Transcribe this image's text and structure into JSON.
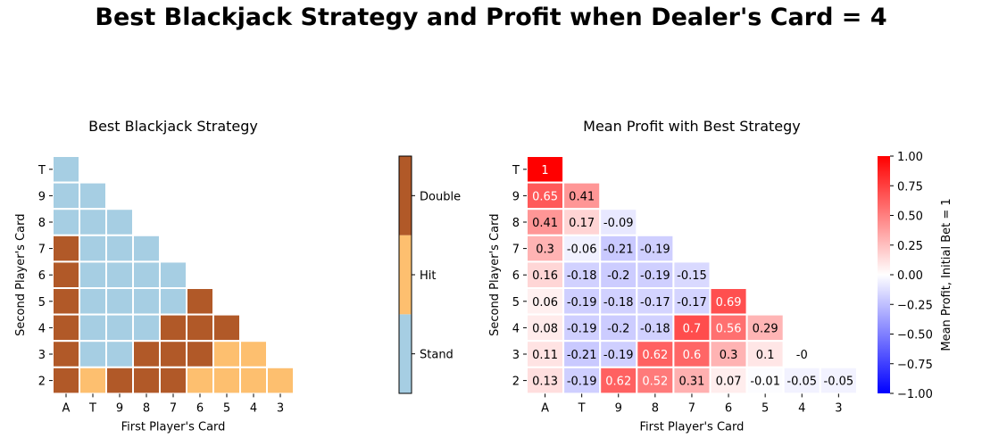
{
  "title": "Best Blackjack Strategy and Profit when Dealer's Card = 4",
  "chart_data": [
    {
      "type": "heatmap",
      "title": "Best Blackjack Strategy",
      "xlabel": "First Player's Card",
      "ylabel": "Second Player's Card",
      "x_categories": [
        "A",
        "T",
        "9",
        "8",
        "7",
        "6",
        "5",
        "4",
        "3"
      ],
      "y_categories": [
        "T",
        "9",
        "8",
        "7",
        "6",
        "5",
        "4",
        "3",
        "2"
      ],
      "legend": {
        "labels": [
          "Stand",
          "Hit",
          "Double"
        ],
        "colors": [
          "#a6cee3",
          "#fdbf6f",
          "#b15928"
        ]
      },
      "values": [
        [
          "Stand",
          null,
          null,
          null,
          null,
          null,
          null,
          null,
          null
        ],
        [
          "Stand",
          "Stand",
          null,
          null,
          null,
          null,
          null,
          null,
          null
        ],
        [
          "Stand",
          "Stand",
          "Stand",
          null,
          null,
          null,
          null,
          null,
          null
        ],
        [
          "Double",
          "Stand",
          "Stand",
          "Stand",
          null,
          null,
          null,
          null,
          null
        ],
        [
          "Double",
          "Stand",
          "Stand",
          "Stand",
          "Stand",
          null,
          null,
          null,
          null
        ],
        [
          "Double",
          "Stand",
          "Stand",
          "Stand",
          "Stand",
          "Double",
          null,
          null,
          null
        ],
        [
          "Double",
          "Stand",
          "Stand",
          "Stand",
          "Double",
          "Double",
          "Double",
          null,
          null
        ],
        [
          "Double",
          "Stand",
          "Stand",
          "Double",
          "Double",
          "Double",
          "Hit",
          "Hit",
          null
        ],
        [
          "Double",
          "Hit",
          "Double",
          "Double",
          "Double",
          "Hit",
          "Hit",
          "Hit",
          "Hit"
        ]
      ]
    },
    {
      "type": "heatmap",
      "title": "Mean Profit with Best Strategy",
      "xlabel": "First Player's Card",
      "ylabel": "Second Player's Card",
      "x_categories": [
        "A",
        "T",
        "9",
        "8",
        "7",
        "6",
        "5",
        "4",
        "3"
      ],
      "y_categories": [
        "T",
        "9",
        "8",
        "7",
        "6",
        "5",
        "4",
        "3",
        "2"
      ],
      "colorbar": {
        "label": "Mean Profit, Initial Bet = 1",
        "range": [
          -1.0,
          1.0
        ],
        "ticks": [
          "1.00",
          "0.75",
          "0.50",
          "0.25",
          "0.00",
          "−0.25",
          "−0.50",
          "−0.75",
          "−1.00"
        ],
        "colors": [
          "#0000ff",
          "#ffffff",
          "#ff0000"
        ]
      },
      "values": [
        [
          1,
          null,
          null,
          null,
          null,
          null,
          null,
          null,
          null
        ],
        [
          0.65,
          0.41,
          null,
          null,
          null,
          null,
          null,
          null,
          null
        ],
        [
          0.41,
          0.17,
          -0.09,
          null,
          null,
          null,
          null,
          null,
          null
        ],
        [
          0.3,
          -0.06,
          -0.21,
          -0.19,
          null,
          null,
          null,
          null,
          null
        ],
        [
          0.16,
          -0.18,
          -0.2,
          -0.19,
          -0.15,
          null,
          null,
          null,
          null
        ],
        [
          0.06,
          -0.19,
          -0.18,
          -0.17,
          -0.17,
          0.69,
          null,
          null,
          null
        ],
        [
          0.08,
          -0.19,
          -0.2,
          -0.18,
          0.7,
          0.56,
          0.29,
          null,
          null
        ],
        [
          0.11,
          -0.21,
          -0.19,
          0.62,
          0.6,
          0.3,
          0.1,
          -0.0,
          null
        ],
        [
          0.13,
          -0.19,
          0.62,
          0.52,
          0.31,
          0.07,
          -0.01,
          -0.05,
          -0.05
        ]
      ],
      "labels": [
        [
          "1",
          null,
          null,
          null,
          null,
          null,
          null,
          null,
          null
        ],
        [
          "0.65",
          "0.41",
          null,
          null,
          null,
          null,
          null,
          null,
          null
        ],
        [
          "0.41",
          "0.17",
          "-0.09",
          null,
          null,
          null,
          null,
          null,
          null
        ],
        [
          "0.3",
          "-0.06",
          "-0.21",
          "-0.19",
          null,
          null,
          null,
          null,
          null
        ],
        [
          "0.16",
          "-0.18",
          "-0.2",
          "-0.19",
          "-0.15",
          null,
          null,
          null,
          null
        ],
        [
          "0.06",
          "-0.19",
          "-0.18",
          "-0.17",
          "-0.17",
          "0.69",
          null,
          null,
          null
        ],
        [
          "0.08",
          "-0.19",
          "-0.2",
          "-0.18",
          "0.7",
          "0.56",
          "0.29",
          null,
          null
        ],
        [
          "0.11",
          "-0.21",
          "-0.19",
          "0.62",
          "0.6",
          "0.3",
          "0.1",
          "-0",
          null
        ],
        [
          "0.13",
          "-0.19",
          "0.62",
          "0.52",
          "0.31",
          "0.07",
          "-0.01",
          "-0.05",
          "-0.05"
        ]
      ]
    }
  ]
}
